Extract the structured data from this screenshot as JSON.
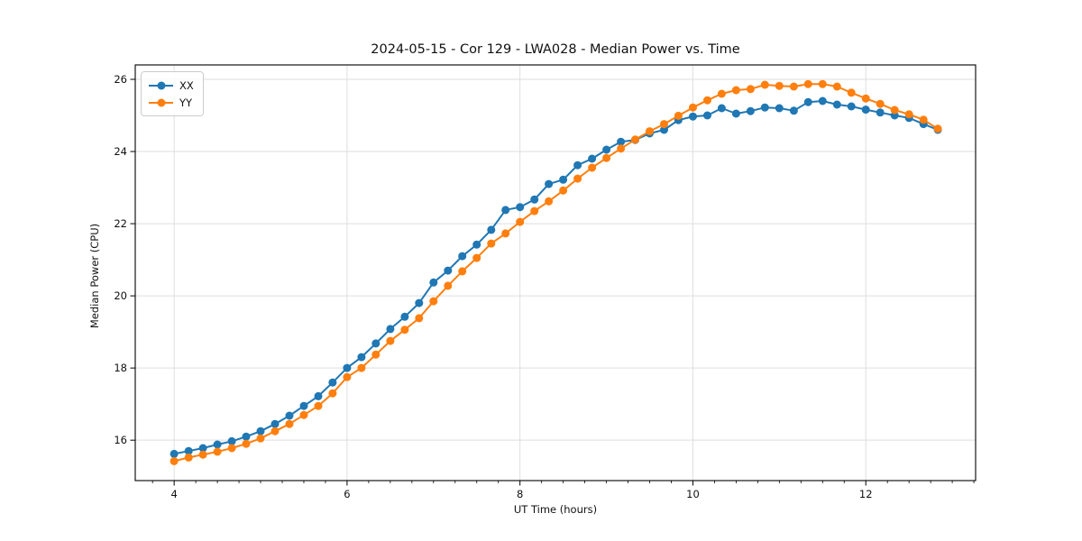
{
  "chart_data": {
    "type": "line",
    "title": "2024-05-15 - Cor 129 - LWA028 - Median Power vs. Time",
    "xlabel": "UT Time (hours)",
    "ylabel": "Median Power (CPU)",
    "xlim": [
      3.55,
      13.27
    ],
    "ylim": [
      14.88,
      26.4
    ],
    "xticks": [
      4,
      6,
      8,
      10,
      12
    ],
    "yticks": [
      16,
      18,
      20,
      22,
      24,
      26
    ],
    "minor_xtick_step": 0.25,
    "grid": true,
    "legend_position": "upper-left",
    "x": [
      4.0,
      4.167,
      4.333,
      4.5,
      4.667,
      4.833,
      5.0,
      5.167,
      5.333,
      5.5,
      5.667,
      5.833,
      6.0,
      6.167,
      6.333,
      6.5,
      6.667,
      6.833,
      7.0,
      7.167,
      7.333,
      7.5,
      7.667,
      7.833,
      8.0,
      8.167,
      8.333,
      8.5,
      8.667,
      8.833,
      9.0,
      9.167,
      9.333,
      9.5,
      9.667,
      9.833,
      10.0,
      10.167,
      10.333,
      10.5,
      10.667,
      10.833,
      11.0,
      11.167,
      11.333,
      11.5,
      11.667,
      11.833,
      12.0,
      12.167,
      12.333,
      12.5,
      12.667,
      12.833
    ],
    "series": [
      {
        "name": "XX",
        "color": "#1f77b4",
        "values": [
          15.62,
          15.7,
          15.78,
          15.88,
          15.97,
          16.1,
          16.25,
          16.45,
          16.68,
          16.95,
          17.22,
          17.6,
          18.0,
          18.3,
          18.68,
          19.08,
          19.42,
          19.8,
          20.37,
          20.7,
          21.1,
          21.42,
          21.83,
          22.38,
          22.46,
          22.67,
          23.1,
          23.22,
          23.62,
          23.8,
          24.05,
          24.27,
          24.32,
          24.5,
          24.6,
          24.87,
          24.97,
          25.0,
          25.2,
          25.05,
          25.12,
          25.22,
          25.2,
          25.13,
          25.37,
          25.4,
          25.3,
          25.25,
          25.16,
          25.08,
          25.0,
          24.93,
          24.76,
          24.6
        ]
      },
      {
        "name": "YY",
        "color": "#ff7f0e",
        "values": [
          15.42,
          15.52,
          15.6,
          15.68,
          15.78,
          15.9,
          16.05,
          16.25,
          16.45,
          16.7,
          16.95,
          17.3,
          17.75,
          18.0,
          18.37,
          18.75,
          19.06,
          19.38,
          19.85,
          20.28,
          20.68,
          21.05,
          21.45,
          21.73,
          22.05,
          22.35,
          22.62,
          22.92,
          23.25,
          23.55,
          23.82,
          24.08,
          24.33,
          24.56,
          24.76,
          24.99,
          25.22,
          25.42,
          25.6,
          25.7,
          25.73,
          25.85,
          25.82,
          25.8,
          25.87,
          25.87,
          25.8,
          25.63,
          25.47,
          25.32,
          25.15,
          25.03,
          24.88,
          24.63
        ]
      }
    ]
  },
  "style": {
    "grid_color": "#dedede",
    "spine_color": "#000000",
    "tick_color": "#000000",
    "background": "#ffffff"
  }
}
